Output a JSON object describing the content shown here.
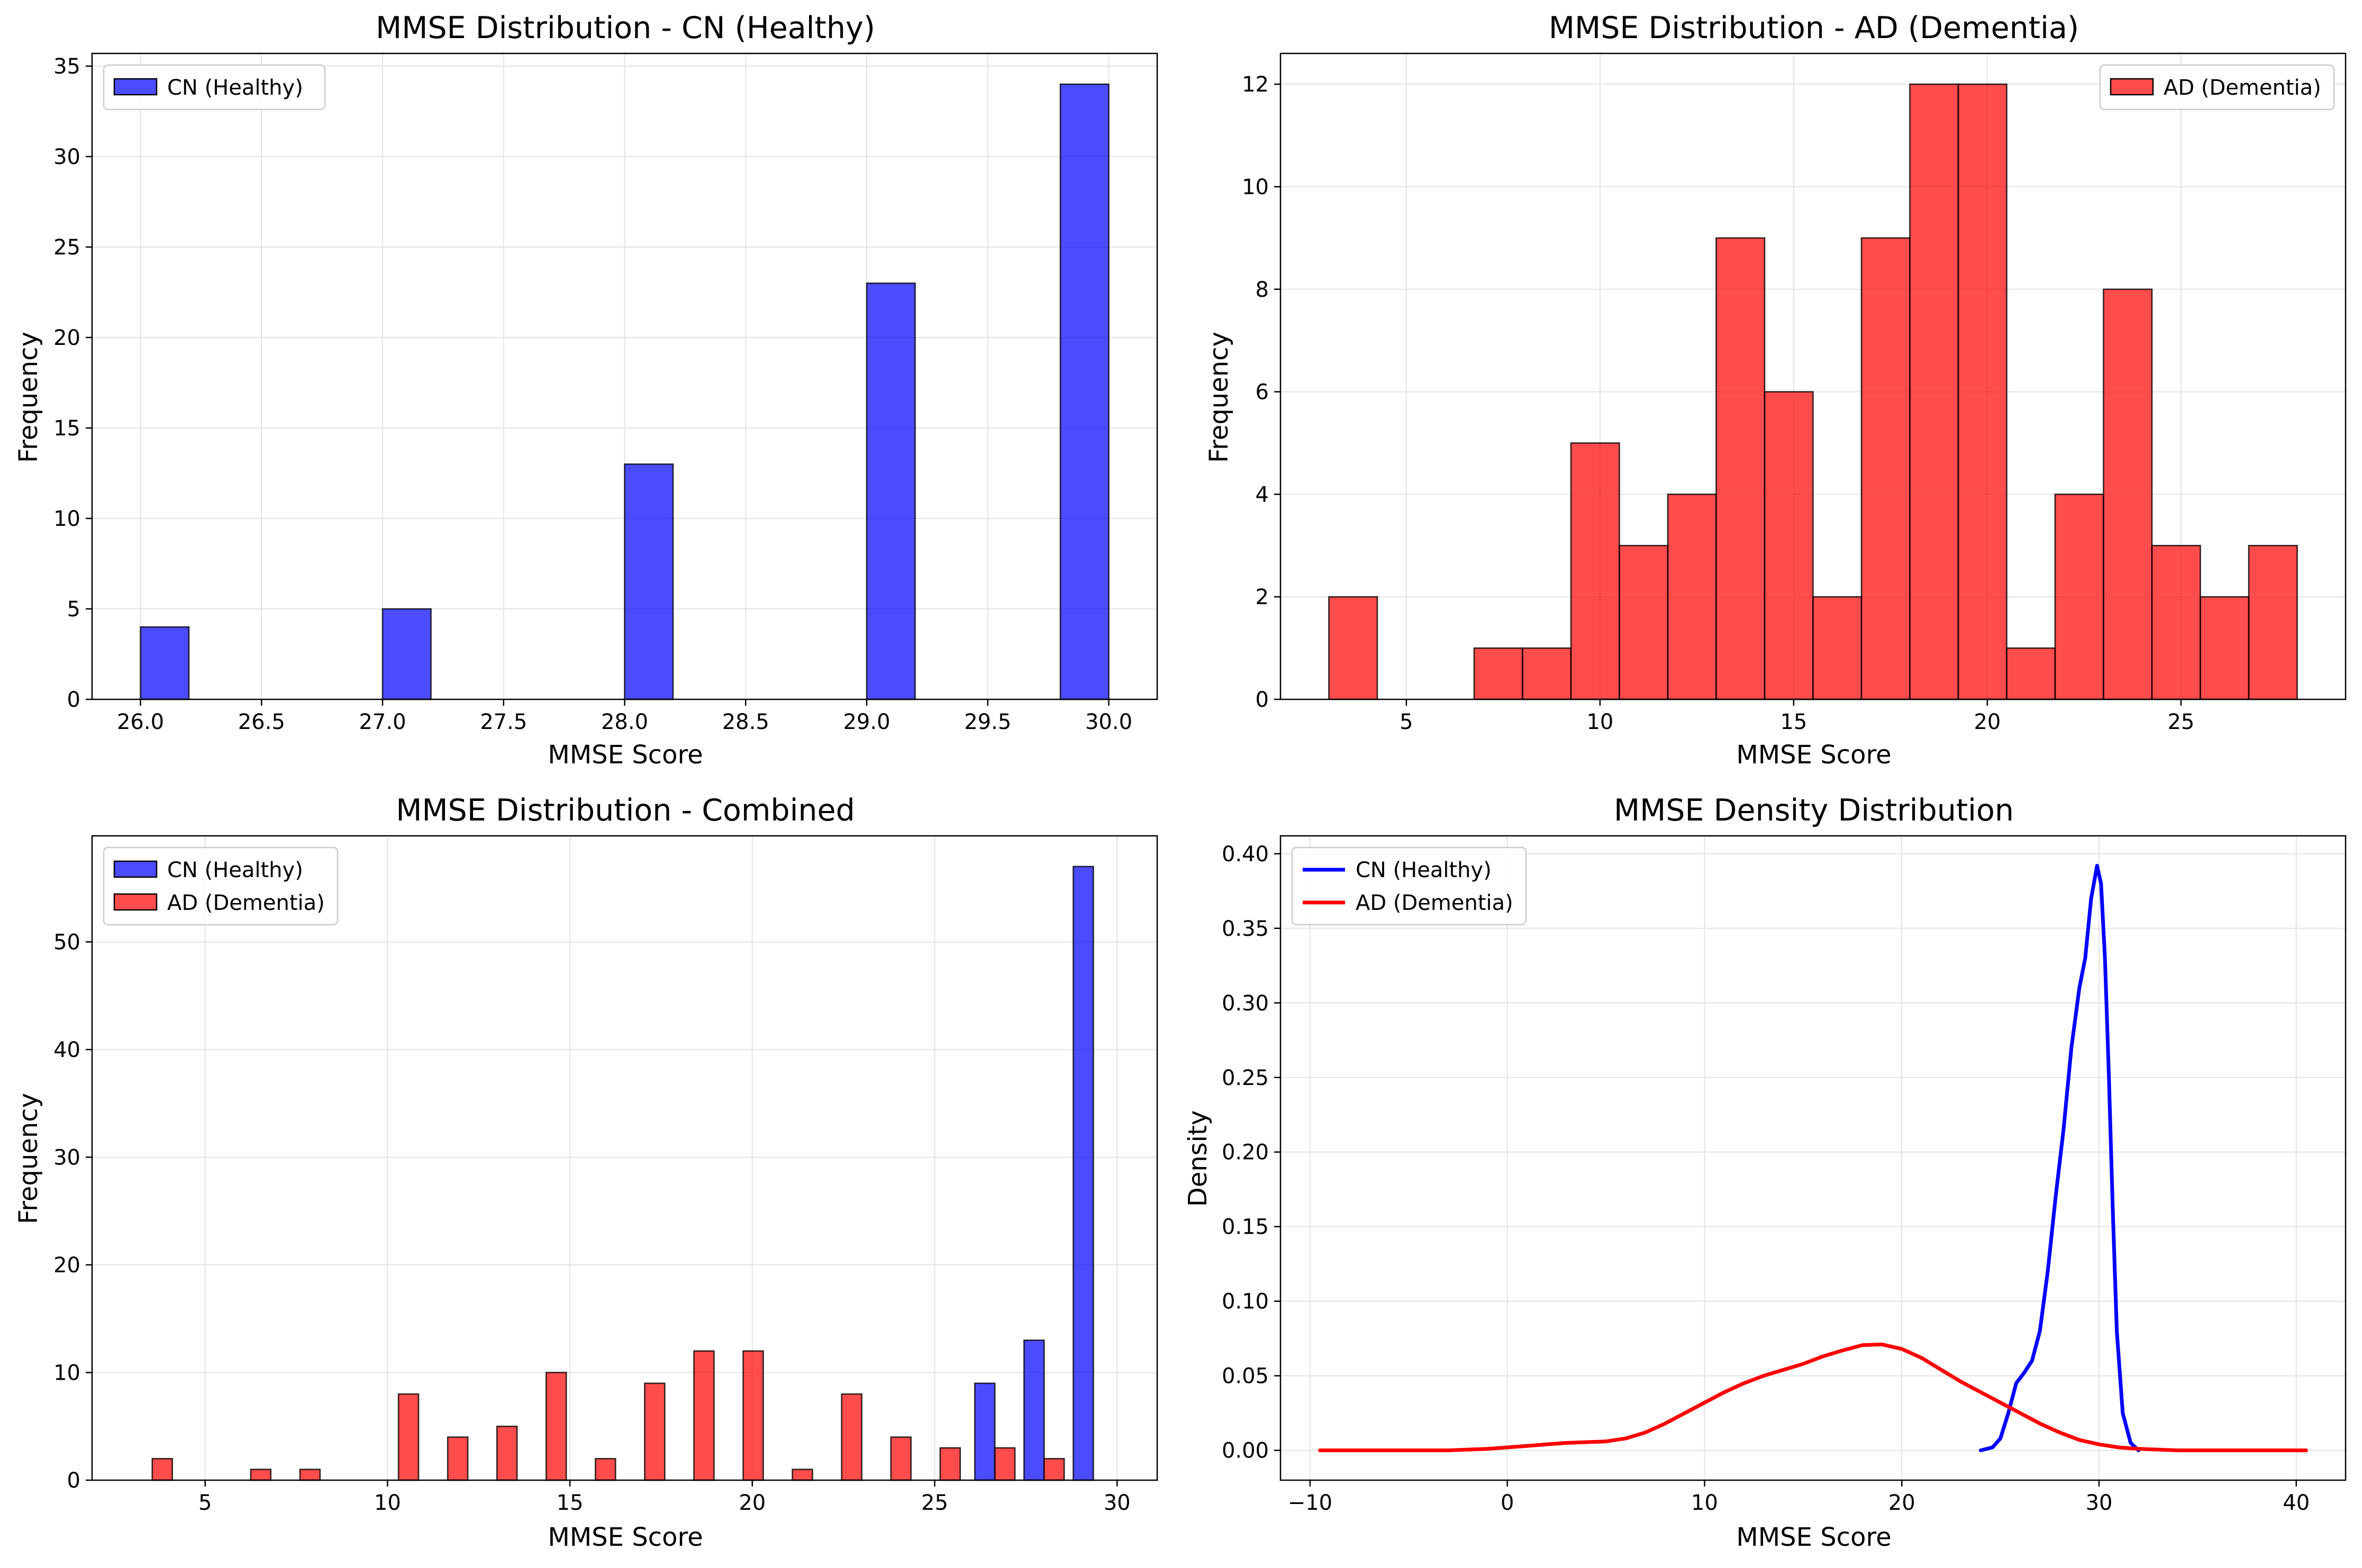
{
  "colors": {
    "cn": "#0000ff",
    "ad": "#ff0000",
    "bar_edge": "#000000",
    "grid": "#e3e3e3",
    "axis": "#000000"
  },
  "chart_data": [
    {
      "type": "bar",
      "title": "MMSE Distribution - CN (Healthy)",
      "xlabel": "MMSE Score",
      "ylabel": "Frequency",
      "xlim": [
        25.8,
        30.2
      ],
      "ylim": [
        0,
        35.7
      ],
      "xticks": [
        26.0,
        26.5,
        27.0,
        27.5,
        28.0,
        28.5,
        29.0,
        29.5,
        30.0
      ],
      "xtick_labels": [
        "26.0",
        "26.5",
        "27.0",
        "27.5",
        "28.0",
        "28.5",
        "29.0",
        "29.5",
        "30.0"
      ],
      "yticks": [
        0,
        5,
        10,
        15,
        20,
        25,
        30,
        35
      ],
      "ytick_labels": [
        "0",
        "5",
        "10",
        "15",
        "20",
        "25",
        "30",
        "35"
      ],
      "grid": true,
      "legend_position": "top-left",
      "series": [
        {
          "name": "CN (Healthy)",
          "color": "#0000ff",
          "bins": [
            {
              "start": 26.0,
              "end": 26.2,
              "value": 4
            },
            {
              "start": 27.0,
              "end": 27.2,
              "value": 5
            },
            {
              "start": 28.0,
              "end": 28.2,
              "value": 13
            },
            {
              "start": 29.0,
              "end": 29.2,
              "value": 23
            },
            {
              "start": 29.8,
              "end": 30.0,
              "value": 34
            }
          ]
        }
      ]
    },
    {
      "type": "bar",
      "title": "MMSE Distribution - AD (Dementia)",
      "xlabel": "MMSE Score",
      "ylabel": "Frequency",
      "xlim": [
        1.75,
        29.25
      ],
      "ylim": [
        0,
        12.6
      ],
      "xticks": [
        5,
        10,
        15,
        20,
        25
      ],
      "xtick_labels": [
        "5",
        "10",
        "15",
        "20",
        "25"
      ],
      "yticks": [
        0,
        2,
        4,
        6,
        8,
        10,
        12
      ],
      "ytick_labels": [
        "0",
        "2",
        "4",
        "6",
        "8",
        "10",
        "12"
      ],
      "grid": true,
      "legend_position": "top-right",
      "series": [
        {
          "name": "AD (Dementia)",
          "color": "#ff0000",
          "bins": [
            {
              "start": 3.0,
              "end": 4.25,
              "value": 2
            },
            {
              "start": 6.75,
              "end": 8.0,
              "value": 1
            },
            {
              "start": 8.0,
              "end": 9.25,
              "value": 1
            },
            {
              "start": 9.25,
              "end": 10.5,
              "value": 5
            },
            {
              "start": 10.5,
              "end": 11.75,
              "value": 3
            },
            {
              "start": 11.75,
              "end": 13.0,
              "value": 4
            },
            {
              "start": 13.0,
              "end": 14.25,
              "value": 9
            },
            {
              "start": 14.25,
              "end": 15.5,
              "value": 6
            },
            {
              "start": 15.5,
              "end": 16.75,
              "value": 2
            },
            {
              "start": 16.75,
              "end": 18.0,
              "value": 9
            },
            {
              "start": 18.0,
              "end": 19.25,
              "value": 12
            },
            {
              "start": 19.25,
              "end": 20.5,
              "value": 12
            },
            {
              "start": 20.5,
              "end": 21.75,
              "value": 1
            },
            {
              "start": 21.75,
              "end": 23.0,
              "value": 4
            },
            {
              "start": 23.0,
              "end": 24.25,
              "value": 8
            },
            {
              "start": 24.25,
              "end": 25.5,
              "value": 3
            },
            {
              "start": 25.5,
              "end": 26.75,
              "value": 2
            },
            {
              "start": 26.75,
              "end": 28.0,
              "value": 3
            }
          ]
        }
      ]
    },
    {
      "type": "bar",
      "title": "MMSE Distribution - Combined",
      "xlabel": "MMSE Score",
      "ylabel": "Frequency",
      "xlim": [
        1.9,
        31.1
      ],
      "ylim": [
        0,
        59.85
      ],
      "xticks": [
        5,
        10,
        15,
        20,
        25,
        30
      ],
      "xtick_labels": [
        "5",
        "10",
        "15",
        "20",
        "25",
        "30"
      ],
      "yticks": [
        0,
        10,
        20,
        30,
        40,
        50
      ],
      "ytick_labels": [
        "0",
        "10",
        "20",
        "30",
        "40",
        "50"
      ],
      "grid": true,
      "legend_position": "top-left",
      "series": [
        {
          "name": "CN (Healthy)",
          "color": "#0000ff",
          "bins": [
            {
              "start": 26.1,
              "end": 26.65,
              "value": 9
            },
            {
              "start": 27.45,
              "end": 28.0,
              "value": 13
            },
            {
              "start": 28.8,
              "end": 29.35,
              "value": 57
            }
          ]
        },
        {
          "name": "AD (Dementia)",
          "color": "#ff0000",
          "bins": [
            {
              "start": 3.55,
              "end": 4.1,
              "value": 2
            },
            {
              "start": 6.25,
              "end": 6.8,
              "value": 1
            },
            {
              "start": 7.6,
              "end": 8.15,
              "value": 1
            },
            {
              "start": 10.3,
              "end": 10.85,
              "value": 8
            },
            {
              "start": 11.65,
              "end": 12.2,
              "value": 4
            },
            {
              "start": 13.0,
              "end": 13.55,
              "value": 5
            },
            {
              "start": 14.35,
              "end": 14.9,
              "value": 10
            },
            {
              "start": 15.7,
              "end": 16.25,
              "value": 2
            },
            {
              "start": 17.05,
              "end": 17.6,
              "value": 9
            },
            {
              "start": 18.4,
              "end": 18.95,
              "value": 12
            },
            {
              "start": 19.75,
              "end": 20.3,
              "value": 12
            },
            {
              "start": 21.1,
              "end": 21.65,
              "value": 1
            },
            {
              "start": 22.45,
              "end": 23.0,
              "value": 8
            },
            {
              "start": 23.8,
              "end": 24.35,
              "value": 4
            },
            {
              "start": 25.15,
              "end": 25.7,
              "value": 3
            },
            {
              "start": 26.65,
              "end": 27.2,
              "value": 3
            },
            {
              "start": 28.0,
              "end": 28.55,
              "value": 2
            }
          ]
        }
      ]
    },
    {
      "type": "line",
      "title": "MMSE Density Distribution",
      "xlabel": "MMSE Score",
      "ylabel": "Density",
      "xlim": [
        -11.5,
        42.5
      ],
      "ylim": [
        -0.02,
        0.412
      ],
      "xticks": [
        -10,
        0,
        10,
        20,
        30,
        40
      ],
      "xtick_labels": [
        "−10",
        "0",
        "10",
        "20",
        "30",
        "40"
      ],
      "yticks": [
        0.0,
        0.05,
        0.1,
        0.15,
        0.2,
        0.25,
        0.3,
        0.35,
        0.4
      ],
      "ytick_labels": [
        "0.00",
        "0.05",
        "0.10",
        "0.15",
        "0.20",
        "0.25",
        "0.30",
        "0.35",
        "0.40"
      ],
      "grid": true,
      "legend_position": "top-left",
      "series": [
        {
          "name": "CN (Healthy)",
          "color": "#0000ff",
          "x": [
            24.0,
            24.6,
            25.0,
            25.4,
            25.8,
            26.2,
            26.6,
            27.0,
            27.4,
            27.8,
            28.2,
            28.6,
            29.0,
            29.3,
            29.6,
            29.9,
            30.1,
            30.3,
            30.5,
            30.7,
            30.9,
            31.2,
            31.6,
            32.0
          ],
          "values": [
            0.0,
            0.002,
            0.008,
            0.025,
            0.045,
            0.052,
            0.06,
            0.08,
            0.12,
            0.17,
            0.215,
            0.27,
            0.31,
            0.33,
            0.37,
            0.392,
            0.38,
            0.33,
            0.25,
            0.16,
            0.08,
            0.025,
            0.005,
            0.0
          ]
        },
        {
          "name": "AD (Dementia)",
          "color": "#ff0000",
          "x": [
            -9.5,
            -6,
            -3,
            -1,
            0,
            1,
            2,
            3,
            4,
            5,
            6,
            7,
            8,
            9,
            10,
            11,
            12,
            13,
            14,
            15,
            16,
            17,
            18,
            19,
            20,
            21,
            22,
            23,
            24,
            25,
            26,
            27,
            28,
            29,
            30,
            31,
            32,
            34,
            36,
            38,
            40.5
          ],
          "values": [
            0.0,
            0.0,
            0.0,
            0.001,
            0.002,
            0.003,
            0.004,
            0.005,
            0.0055,
            0.006,
            0.008,
            0.012,
            0.018,
            0.025,
            0.032,
            0.039,
            0.045,
            0.05,
            0.054,
            0.058,
            0.063,
            0.067,
            0.0705,
            0.071,
            0.068,
            0.062,
            0.054,
            0.046,
            0.039,
            0.032,
            0.025,
            0.018,
            0.012,
            0.007,
            0.004,
            0.002,
            0.001,
            0.0,
            0.0,
            0.0,
            0.0
          ]
        }
      ]
    }
  ]
}
